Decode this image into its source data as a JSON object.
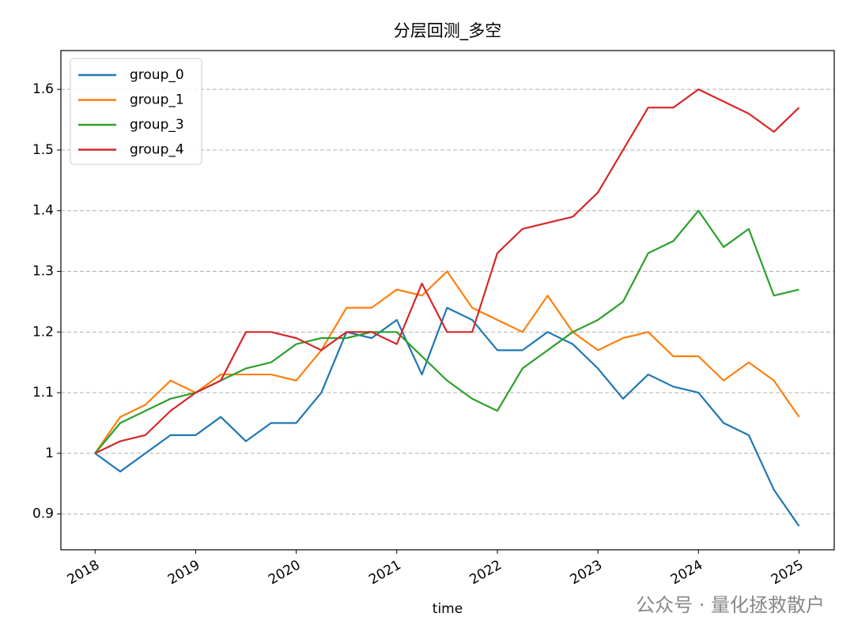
{
  "chart_data": {
    "type": "line",
    "title": "分层回测_多空",
    "x_label": "time",
    "x": [
      2018,
      2018.25,
      2018.5,
      2018.75,
      2019,
      2019.25,
      2019.5,
      2019.75,
      2020,
      2020.25,
      2020.5,
      2020.75,
      2021,
      2021.25,
      2021.5,
      2021.75,
      2022,
      2022.25,
      2022.5,
      2022.75,
      2023,
      2023.25,
      2023.5,
      2023.75,
      2024,
      2024.25,
      2024.5,
      2024.75,
      2025
    ],
    "series": [
      {
        "name": "group_0",
        "color": "#1f77b4",
        "values": [
          1.0,
          0.97,
          1.0,
          1.03,
          1.03,
          1.06,
          1.02,
          1.05,
          1.05,
          1.1,
          1.2,
          1.19,
          1.22,
          1.13,
          1.24,
          1.22,
          1.17,
          1.17,
          1.2,
          1.18,
          1.14,
          1.09,
          1.13,
          1.11,
          1.1,
          1.05,
          1.03,
          0.94,
          0.88
        ]
      },
      {
        "name": "group_1",
        "color": "#ff7f0e",
        "values": [
          1.0,
          1.06,
          1.08,
          1.12,
          1.1,
          1.13,
          1.13,
          1.13,
          1.12,
          1.17,
          1.24,
          1.24,
          1.27,
          1.26,
          1.3,
          1.24,
          1.22,
          1.2,
          1.26,
          1.2,
          1.17,
          1.19,
          1.2,
          1.16,
          1.16,
          1.12,
          1.15,
          1.12,
          1.06
        ]
      },
      {
        "name": "group_3",
        "color": "#2ca02c",
        "values": [
          1.0,
          1.05,
          1.07,
          1.09,
          1.1,
          1.12,
          1.14,
          1.15,
          1.18,
          1.19,
          1.19,
          1.2,
          1.2,
          1.16,
          1.12,
          1.09,
          1.07,
          1.14,
          1.17,
          1.2,
          1.22,
          1.25,
          1.33,
          1.35,
          1.4,
          1.34,
          1.37,
          1.26,
          1.27
        ]
      },
      {
        "name": "group_4",
        "color": "#d62728",
        "values": [
          1.0,
          1.02,
          1.03,
          1.07,
          1.1,
          1.12,
          1.2,
          1.2,
          1.19,
          1.17,
          1.2,
          1.2,
          1.18,
          1.28,
          1.2,
          1.2,
          1.33,
          1.37,
          1.38,
          1.39,
          1.43,
          1.5,
          1.57,
          1.57,
          1.6,
          1.58,
          1.56,
          1.53,
          1.57
        ]
      }
    ],
    "xlim": [
      2017.66,
      2025.35
    ],
    "xticks": [
      2018,
      2019,
      2020,
      2021,
      2022,
      2023,
      2024,
      2025
    ],
    "ylim": [
      0.841,
      1.664
    ],
    "yticks": [
      0.9,
      1.0,
      1.1,
      1.2,
      1.3,
      1.4,
      1.5,
      1.6
    ],
    "grid": true,
    "legend": "upper-left",
    "watermark": "公众号 · 量化拯救散户"
  }
}
